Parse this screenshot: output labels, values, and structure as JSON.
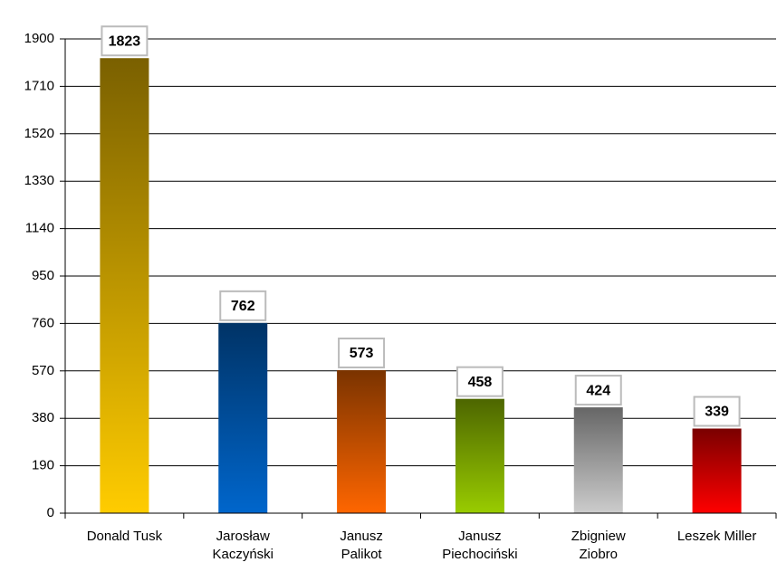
{
  "chart_data": {
    "type": "bar",
    "categories": [
      "Donald Tusk",
      "Jarosław\nKaczyński",
      "Janusz\nPalikot",
      "Janusz\nPiechociński",
      "Zbigniew\nZiobro",
      "Leszek Miller"
    ],
    "values": [
      1823,
      762,
      573,
      458,
      424,
      339
    ],
    "colors": [
      [
        "#7a6000",
        "#ffcc00"
      ],
      [
        "#003366",
        "#0066cc"
      ],
      [
        "#7a3300",
        "#ff6600"
      ],
      [
        "#4d6600",
        "#99cc00"
      ],
      [
        "#666666",
        "#cccccc"
      ],
      [
        "#7a0000",
        "#ff0000"
      ]
    ],
    "ylim": [
      0,
      1900
    ],
    "yticks": [
      0,
      190,
      380,
      570,
      760,
      950,
      1140,
      1330,
      1520,
      1710,
      1900
    ],
    "grid": true
  }
}
